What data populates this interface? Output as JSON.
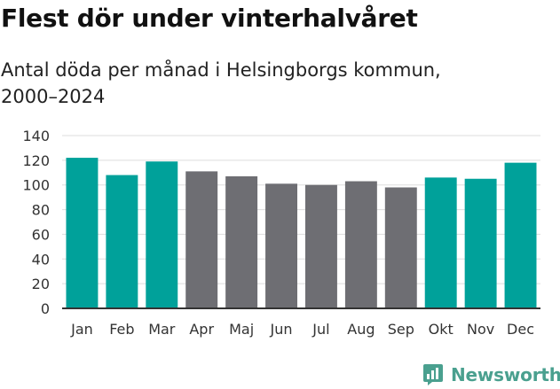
{
  "chart_data": {
    "type": "bar",
    "title": "Flest dör under vinterhalvåret",
    "subtitle": "Antal döda per månad i Helsingborgs kommun, 2000–2024",
    "categories": [
      "Jan",
      "Feb",
      "Mar",
      "Apr",
      "Maj",
      "Jun",
      "Jul",
      "Aug",
      "Sep",
      "Okt",
      "Nov",
      "Dec"
    ],
    "values": [
      122,
      108,
      119,
      111,
      107,
      101,
      100,
      103,
      98,
      106,
      105,
      118
    ],
    "highlight": [
      true,
      true,
      true,
      false,
      false,
      false,
      false,
      false,
      false,
      true,
      true,
      true
    ],
    "yticks": [
      0,
      20,
      40,
      60,
      80,
      100,
      120,
      140
    ],
    "ylim": [
      0,
      140
    ],
    "xlabel": "",
    "ylabel": "",
    "grid": true,
    "colors": {
      "highlight": "#00a19a",
      "base": "#6e6e73",
      "grid": "#dddddd",
      "axis": "#333333"
    }
  },
  "brand": {
    "name": "Newsworthy",
    "icon": "newsworthy-logo-icon",
    "color": "#4aa08f"
  }
}
